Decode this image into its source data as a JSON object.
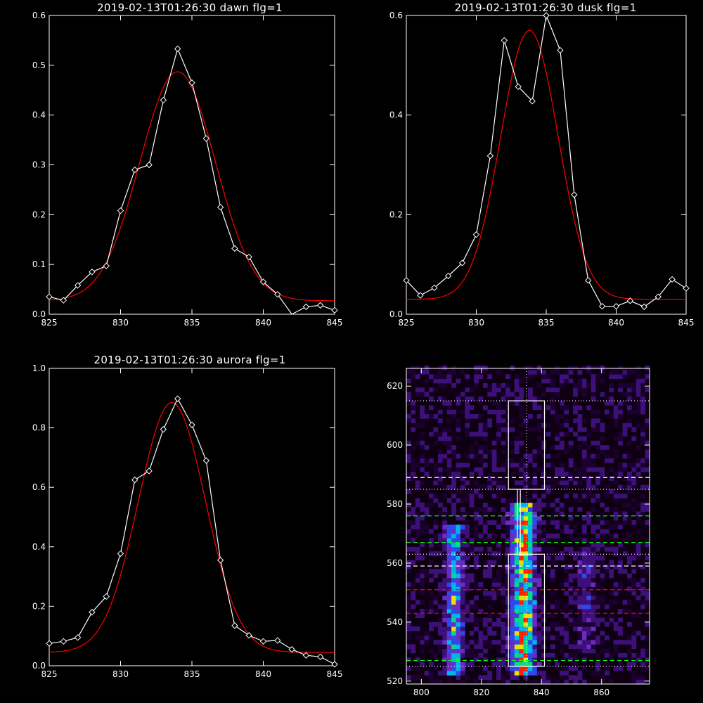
{
  "chart_data": [
    {
      "type": "line",
      "title": "2019-02-13T01:26:30 dawn flg=1",
      "xlim": [
        825,
        845
      ],
      "ylim": [
        0,
        0.6
      ],
      "xticks": [
        825,
        830,
        835,
        840,
        845
      ],
      "yticks": [
        0.0,
        0.1,
        0.2,
        0.3,
        0.4,
        0.5,
        0.6
      ],
      "ytick_labels": [
        "0.0",
        "0.1",
        "0.2",
        "0.3",
        "0.4",
        "0.5",
        "0.6"
      ],
      "x": [
        825,
        826,
        827,
        828,
        829,
        830,
        831,
        832,
        833,
        834,
        835,
        836,
        837,
        838,
        839,
        840,
        841,
        842,
        843,
        844,
        845
      ],
      "observed": [
        0.035,
        0.028,
        0.058,
        0.085,
        0.097,
        0.208,
        0.29,
        0.3,
        0.43,
        0.533,
        0.465,
        0.353,
        0.215,
        0.132,
        0.115,
        0.065,
        0.04,
        -0.005,
        0.015,
        0.018,
        0.008
      ],
      "fit": {
        "baseline": 0.027,
        "amplitude": 0.46,
        "center": 834.0,
        "sigma": 2.65
      }
    },
    {
      "type": "line",
      "title": "2019-02-13T01:26:30 dusk flg=1",
      "xlim": [
        825,
        845
      ],
      "ylim": [
        0,
        0.6
      ],
      "xticks": [
        825,
        830,
        835,
        840,
        845
      ],
      "yticks": [
        0.0,
        0.2,
        0.4,
        0.6
      ],
      "ytick_labels": [
        "0.0",
        "0.2",
        "0.4",
        "0.6"
      ],
      "x": [
        825,
        826,
        827,
        828,
        829,
        830,
        831,
        832,
        833,
        834,
        835,
        836,
        837,
        838,
        839,
        840,
        841,
        842,
        843,
        844,
        845
      ],
      "observed": [
        0.068,
        0.038,
        0.053,
        0.077,
        0.103,
        0.16,
        0.318,
        0.55,
        0.457,
        0.428,
        0.6,
        0.53,
        0.24,
        0.068,
        0.016,
        0.016,
        0.027,
        0.015,
        0.035,
        0.07,
        0.052
      ],
      "fit": {
        "baseline": 0.03,
        "amplitude": 0.54,
        "center": 833.8,
        "sigma": 2.05
      }
    },
    {
      "type": "line",
      "title": "2019-02-13T01:26:30 aurora flg=1",
      "xlim": [
        825,
        845
      ],
      "ylim": [
        0,
        1.0
      ],
      "xticks": [
        825,
        830,
        835,
        840,
        845
      ],
      "yticks": [
        0.0,
        0.2,
        0.4,
        0.6,
        0.8,
        1.0
      ],
      "ytick_labels": [
        "0.0",
        "0.2",
        "0.4",
        "0.6",
        "0.8",
        "1.0"
      ],
      "x": [
        825,
        826,
        827,
        828,
        829,
        830,
        831,
        832,
        833,
        834,
        835,
        836,
        837,
        838,
        839,
        840,
        841,
        842,
        843,
        844,
        845
      ],
      "observed": [
        0.075,
        0.082,
        0.095,
        0.18,
        0.233,
        0.377,
        0.625,
        0.655,
        0.795,
        0.898,
        0.81,
        0.69,
        0.355,
        0.135,
        0.102,
        0.082,
        0.085,
        0.055,
        0.035,
        0.03,
        0.005
      ],
      "fit": {
        "baseline": 0.045,
        "amplitude": 0.84,
        "center": 833.6,
        "sigma": 2.35
      }
    },
    {
      "type": "heatmap",
      "title": "",
      "xlim": [
        795,
        876
      ],
      "ylim": [
        519,
        626
      ],
      "xticks": [
        800,
        820,
        840,
        860
      ],
      "yticks": [
        520,
        540,
        560,
        580,
        600,
        620
      ],
      "colormap": [
        "#1c0030",
        "#3c1078",
        "#6a2cc0",
        "#3048e8",
        "#00b4f0",
        "#00e080",
        "#e8e000",
        "#ff2000"
      ],
      "emission_columns": [
        {
          "center": 811,
          "halfwidth": 3,
          "ymin": 522,
          "ymax": 573,
          "peak": 0.55
        },
        {
          "center": 834,
          "halfwidth": 4,
          "ymin": 522,
          "ymax": 580,
          "peak": 0.9
        },
        {
          "center": 855,
          "halfwidth": 3,
          "ymin": 530,
          "ymax": 565,
          "peak": 0.22
        }
      ],
      "boxes": [
        {
          "x0": 829,
          "x1": 841,
          "y0": 585,
          "y1": 615
        },
        {
          "x0": 829,
          "x1": 841,
          "y0": 525,
          "y1": 563
        }
      ],
      "center_line_x": 835,
      "dotted_white_y": [
        615,
        585,
        563,
        525
      ],
      "dashed_white_y": [
        589,
        559
      ],
      "dashed_green_y": [
        576,
        567,
        527
      ],
      "dashed_red_y": [
        551,
        543
      ]
    }
  ]
}
